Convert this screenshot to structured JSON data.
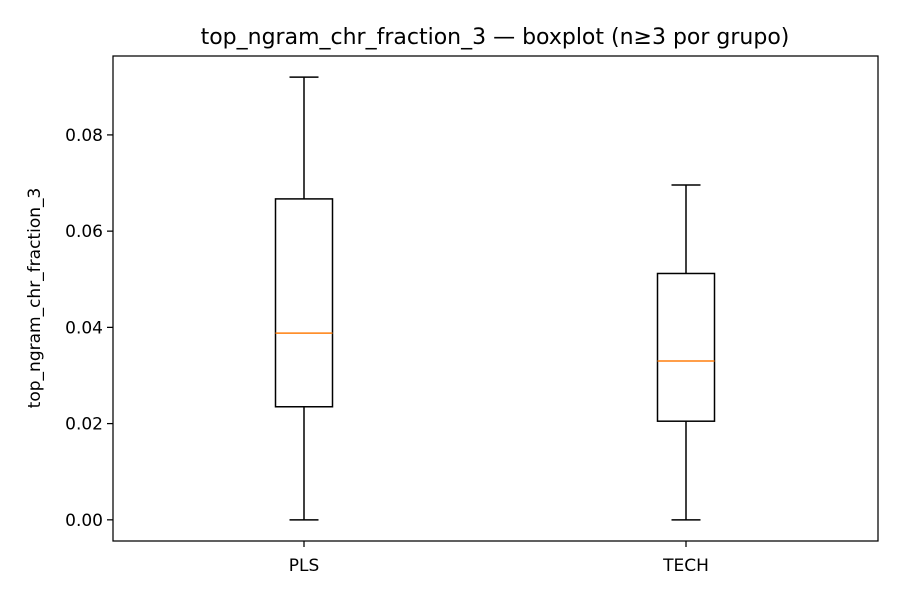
{
  "chart_data": {
    "type": "boxplot",
    "title": "top_ngram_chr_fraction_3 — boxplot (n≥3 por grupo)",
    "xlabel": "",
    "ylabel": "top_ngram_chr_fraction_3",
    "ylim": [
      -0.0044,
      0.0964
    ],
    "yticks": [
      0.0,
      0.02,
      0.04,
      0.06,
      0.08
    ],
    "ytick_labels": [
      "0.00",
      "0.02",
      "0.04",
      "0.06",
      "0.08"
    ],
    "categories": [
      "PLS",
      "TECH"
    ],
    "boxes": [
      {
        "category": "PLS",
        "whisker_low": 0.0,
        "q1": 0.0235,
        "median": 0.0388,
        "q3": 0.0667,
        "whisker_high": 0.092
      },
      {
        "category": "TECH",
        "whisker_low": 0.0,
        "q1": 0.0205,
        "median": 0.033,
        "q3": 0.0512,
        "whisker_high": 0.0696
      }
    ],
    "grid": false,
    "colors": {
      "box": "#000000",
      "median": "#ff7f0e"
    }
  }
}
